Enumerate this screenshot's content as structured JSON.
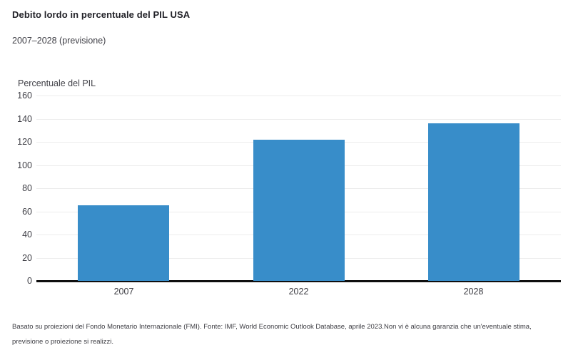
{
  "header": {
    "title": "Debito lordo in percentuale del PIL USA",
    "subtitle": "2007–2028 (previsione)"
  },
  "chart_data": {
    "type": "bar",
    "title": "Debito lordo in percentuale del PIL USA",
    "subtitle": "2007–2028 (previsione)",
    "categories": [
      "2007",
      "2022",
      "2028"
    ],
    "values": [
      65,
      122,
      136
    ],
    "xlabel": "",
    "ylabel": "Percentuale del PIL",
    "ylim": [
      0,
      160
    ],
    "yticks": [
      0,
      20,
      40,
      60,
      80,
      100,
      120,
      140,
      160
    ],
    "grid": true,
    "legend": false,
    "bar_color": "#388dc9"
  },
  "footer": {
    "line1": "Basato su proiezioni del Fondo Monetario Internazionale (FMI). Fonte: IMF, World Economic Outlook Database, aprile 2023.Non vi è alcuna garanzia che un'eventuale stima,",
    "line2": "previsione o proiezione si realizzi."
  }
}
